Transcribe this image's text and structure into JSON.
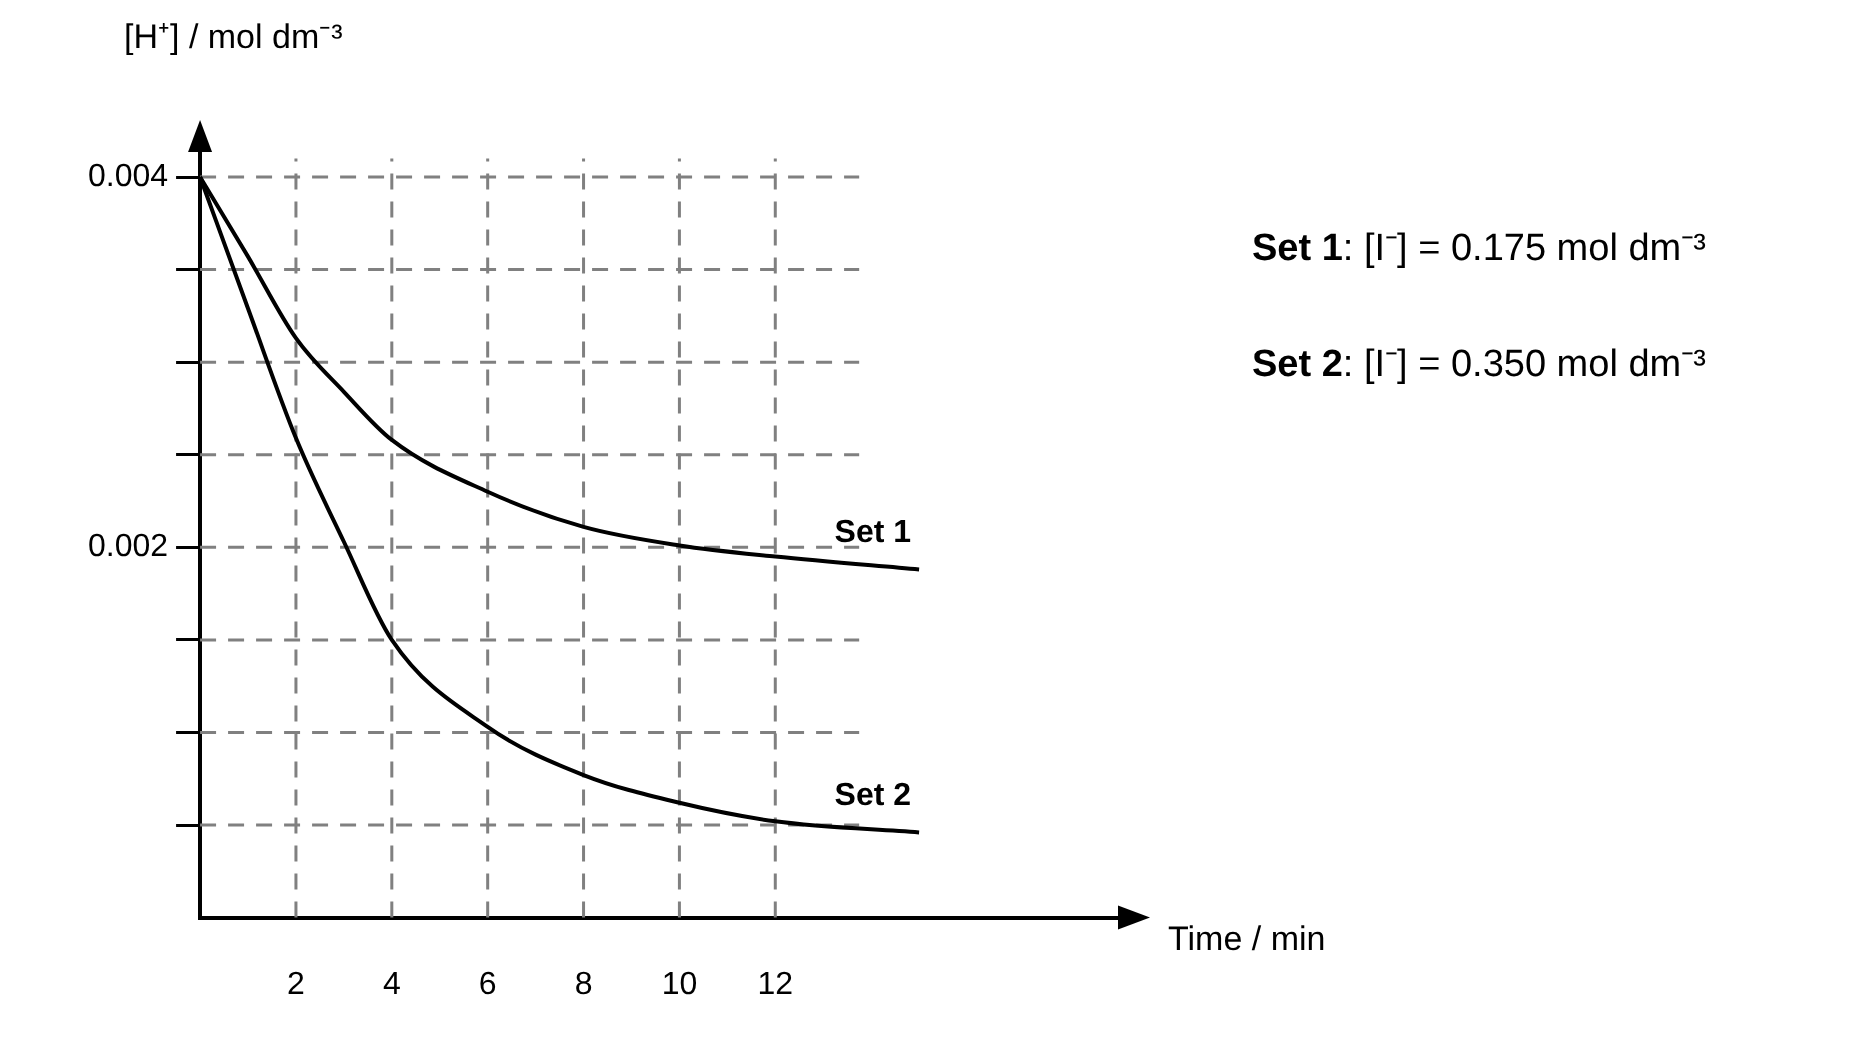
{
  "chart_data": {
    "type": "line",
    "xlabel": "Time / min",
    "ylabel": "[H⁺] / mol dm⁻³",
    "xlim": [
      0,
      19.4
    ],
    "xticks": [
      2,
      4,
      6,
      8,
      10,
      12
    ],
    "ylim": [
      0,
      0.0042
    ],
    "yticks": [
      {
        "value": 0.0005,
        "label": null
      },
      {
        "value": 0.001,
        "label": null
      },
      {
        "value": 0.0015,
        "label": null
      },
      0.002,
      {
        "value": 0.0025,
        "label": null
      },
      {
        "value": 0.003,
        "label": null
      },
      {
        "value": 0.0035,
        "label": null
      },
      0.004
    ],
    "grid": true,
    "legend": false,
    "marker": "none",
    "line_style": "solid",
    "x": [
      0,
      1,
      2,
      3,
      4,
      6,
      8,
      10,
      12,
      15
    ],
    "series": [
      {
        "name": "Set 1",
        "color": "#000000",
        "values": [
          0.004,
          0.00357,
          0.00313,
          0.00284,
          0.00258,
          0.0023,
          0.00211,
          0.00201,
          0.00195,
          0.00188
        ]
      },
      {
        "name": "Set 2",
        "color": "#000000",
        "values": [
          0.004,
          0.00329,
          0.00259,
          0.00203,
          0.0015,
          0.00103,
          0.00077,
          0.00062,
          0.00052,
          0.00046
        ]
      }
    ],
    "annotations": [
      "Set 1: [I⁻] = 0.175 mol dm⁻³",
      "Set 2: [I⁻] = 0.350 mol dm⁻³"
    ]
  }
}
